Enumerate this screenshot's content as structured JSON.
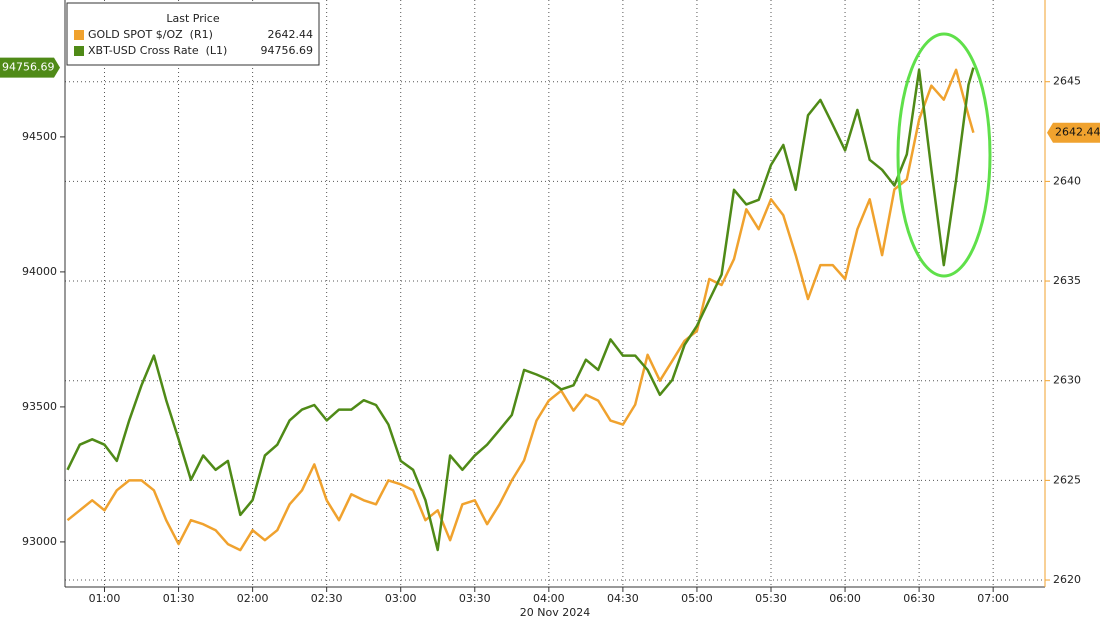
{
  "chart_data": {
    "type": "line",
    "legend_title": "Last Price",
    "x_label": "20 Nov 2024",
    "x": [
      "00:45",
      "00:50",
      "00:55",
      "01:00",
      "01:05",
      "01:10",
      "01:15",
      "01:20",
      "01:25",
      "01:30",
      "01:35",
      "01:40",
      "01:45",
      "01:50",
      "01:55",
      "02:00",
      "02:05",
      "02:10",
      "02:15",
      "02:20",
      "02:25",
      "02:30",
      "02:35",
      "02:40",
      "02:45",
      "02:50",
      "02:55",
      "03:00",
      "03:05",
      "03:10",
      "03:15",
      "03:20",
      "03:25",
      "03:30",
      "03:35",
      "03:40",
      "03:45",
      "03:50",
      "03:55",
      "04:00",
      "04:05",
      "04:10",
      "04:15",
      "04:20",
      "04:25",
      "04:30",
      "04:35",
      "04:40",
      "04:45",
      "04:50",
      "04:55",
      "05:00",
      "05:05",
      "05:10",
      "05:15",
      "05:20",
      "05:25",
      "05:30",
      "05:35",
      "05:40",
      "05:45",
      "05:50",
      "05:55",
      "06:00",
      "06:05",
      "06:10",
      "06:15",
      "06:20",
      "06:25",
      "06:30",
      "06:35",
      "06:40",
      "06:45",
      "06:50",
      "06:52"
    ],
    "xlim": [
      "00:44",
      "07:21"
    ],
    "xticks": [
      "01:00",
      "01:30",
      "02:00",
      "02:30",
      "03:00",
      "03:30",
      "04:00",
      "04:30",
      "05:00",
      "05:30",
      "06:00",
      "06:30",
      "07:00"
    ],
    "series": [
      {
        "name": "GOLD SPOT $/OZ  (R1)",
        "color": "#f0a22e",
        "axis": "y2",
        "values": [
          2623.0,
          2623.5,
          2624.0,
          2623.5,
          2624.5,
          2625.0,
          2625.0,
          2624.5,
          2623.0,
          2621.8,
          2623.0,
          2622.8,
          2622.5,
          2621.8,
          2621.5,
          2622.5,
          2622.0,
          2622.5,
          2623.8,
          2624.5,
          2625.8,
          2624.0,
          2623.0,
          2624.3,
          2624.0,
          2623.8,
          2625.0,
          2624.8,
          2624.5,
          2623.0,
          2623.5,
          2622.0,
          2623.8,
          2624.0,
          2622.8,
          2623.8,
          2625.0,
          2626.0,
          2628.0,
          2629.0,
          2629.5,
          2628.5,
          2629.3,
          2629.0,
          2628.0,
          2627.8,
          2628.8,
          2631.3,
          2630.0,
          2631.0,
          2632.0,
          2632.5,
          2635.1,
          2634.8,
          2636.1,
          2638.6,
          2637.6,
          2639.1,
          2638.3,
          2636.3,
          2634.1,
          2635.8,
          2635.8,
          2635.1,
          2637.6,
          2639.1,
          2636.3,
          2639.6,
          2640.1,
          2643.1,
          2644.8,
          2644.1,
          2645.6,
          2643.3,
          2642.44
        ]
      },
      {
        "name": "XBT-USD Cross Rate  (L1)",
        "color": "#4f8a17",
        "axis": "y",
        "values": [
          93267,
          93360,
          93380,
          93360,
          93300,
          93450,
          93580,
          93690,
          93525,
          93380,
          93230,
          93320,
          93267,
          93300,
          93100,
          93155,
          93320,
          93360,
          93450,
          93490,
          93507,
          93450,
          93490,
          93490,
          93525,
          93507,
          93435,
          93300,
          93267,
          93155,
          92970,
          93320,
          93267,
          93320,
          93360,
          93415,
          93470,
          93637,
          93620,
          93600,
          93565,
          93580,
          93675,
          93637,
          93750,
          93690,
          93690,
          93637,
          93545,
          93600,
          93730,
          93800,
          93896,
          93990,
          94304,
          94250,
          94267,
          94396,
          94470,
          94304,
          94580,
          94637,
          94545,
          94450,
          94600,
          94415,
          94378,
          94320,
          94435,
          94748,
          94378,
          94025,
          94340,
          94693,
          94756.69
        ]
      }
    ],
    "ylim": [
      92833,
      95007
    ],
    "yticks": [
      93000,
      93500,
      94000,
      94500
    ],
    "y2lim": [
      2619.65,
      2649.1
    ],
    "y2ticks": [
      2620,
      2625,
      2630,
      2635,
      2640,
      2645
    ],
    "grid": true
  }
}
